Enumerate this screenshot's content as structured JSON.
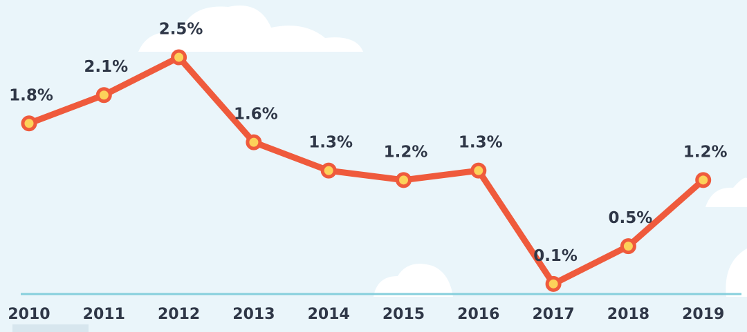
{
  "chart_data": {
    "type": "line",
    "categories": [
      "2010",
      "2011",
      "2012",
      "2013",
      "2014",
      "2015",
      "2016",
      "2017",
      "2018",
      "2019"
    ],
    "values": [
      1.8,
      2.1,
      2.5,
      1.6,
      1.3,
      1.2,
      1.3,
      0.1,
      0.5,
      1.2
    ],
    "value_labels": [
      "1.8%",
      "2.1%",
      "2.5%",
      "1.6%",
      "1.3%",
      "1.2%",
      "1.3%",
      "0.1%",
      "0.5%",
      "1.2%"
    ],
    "color": "#ef5a3c",
    "marker_color": "#fcd25a"
  }
}
